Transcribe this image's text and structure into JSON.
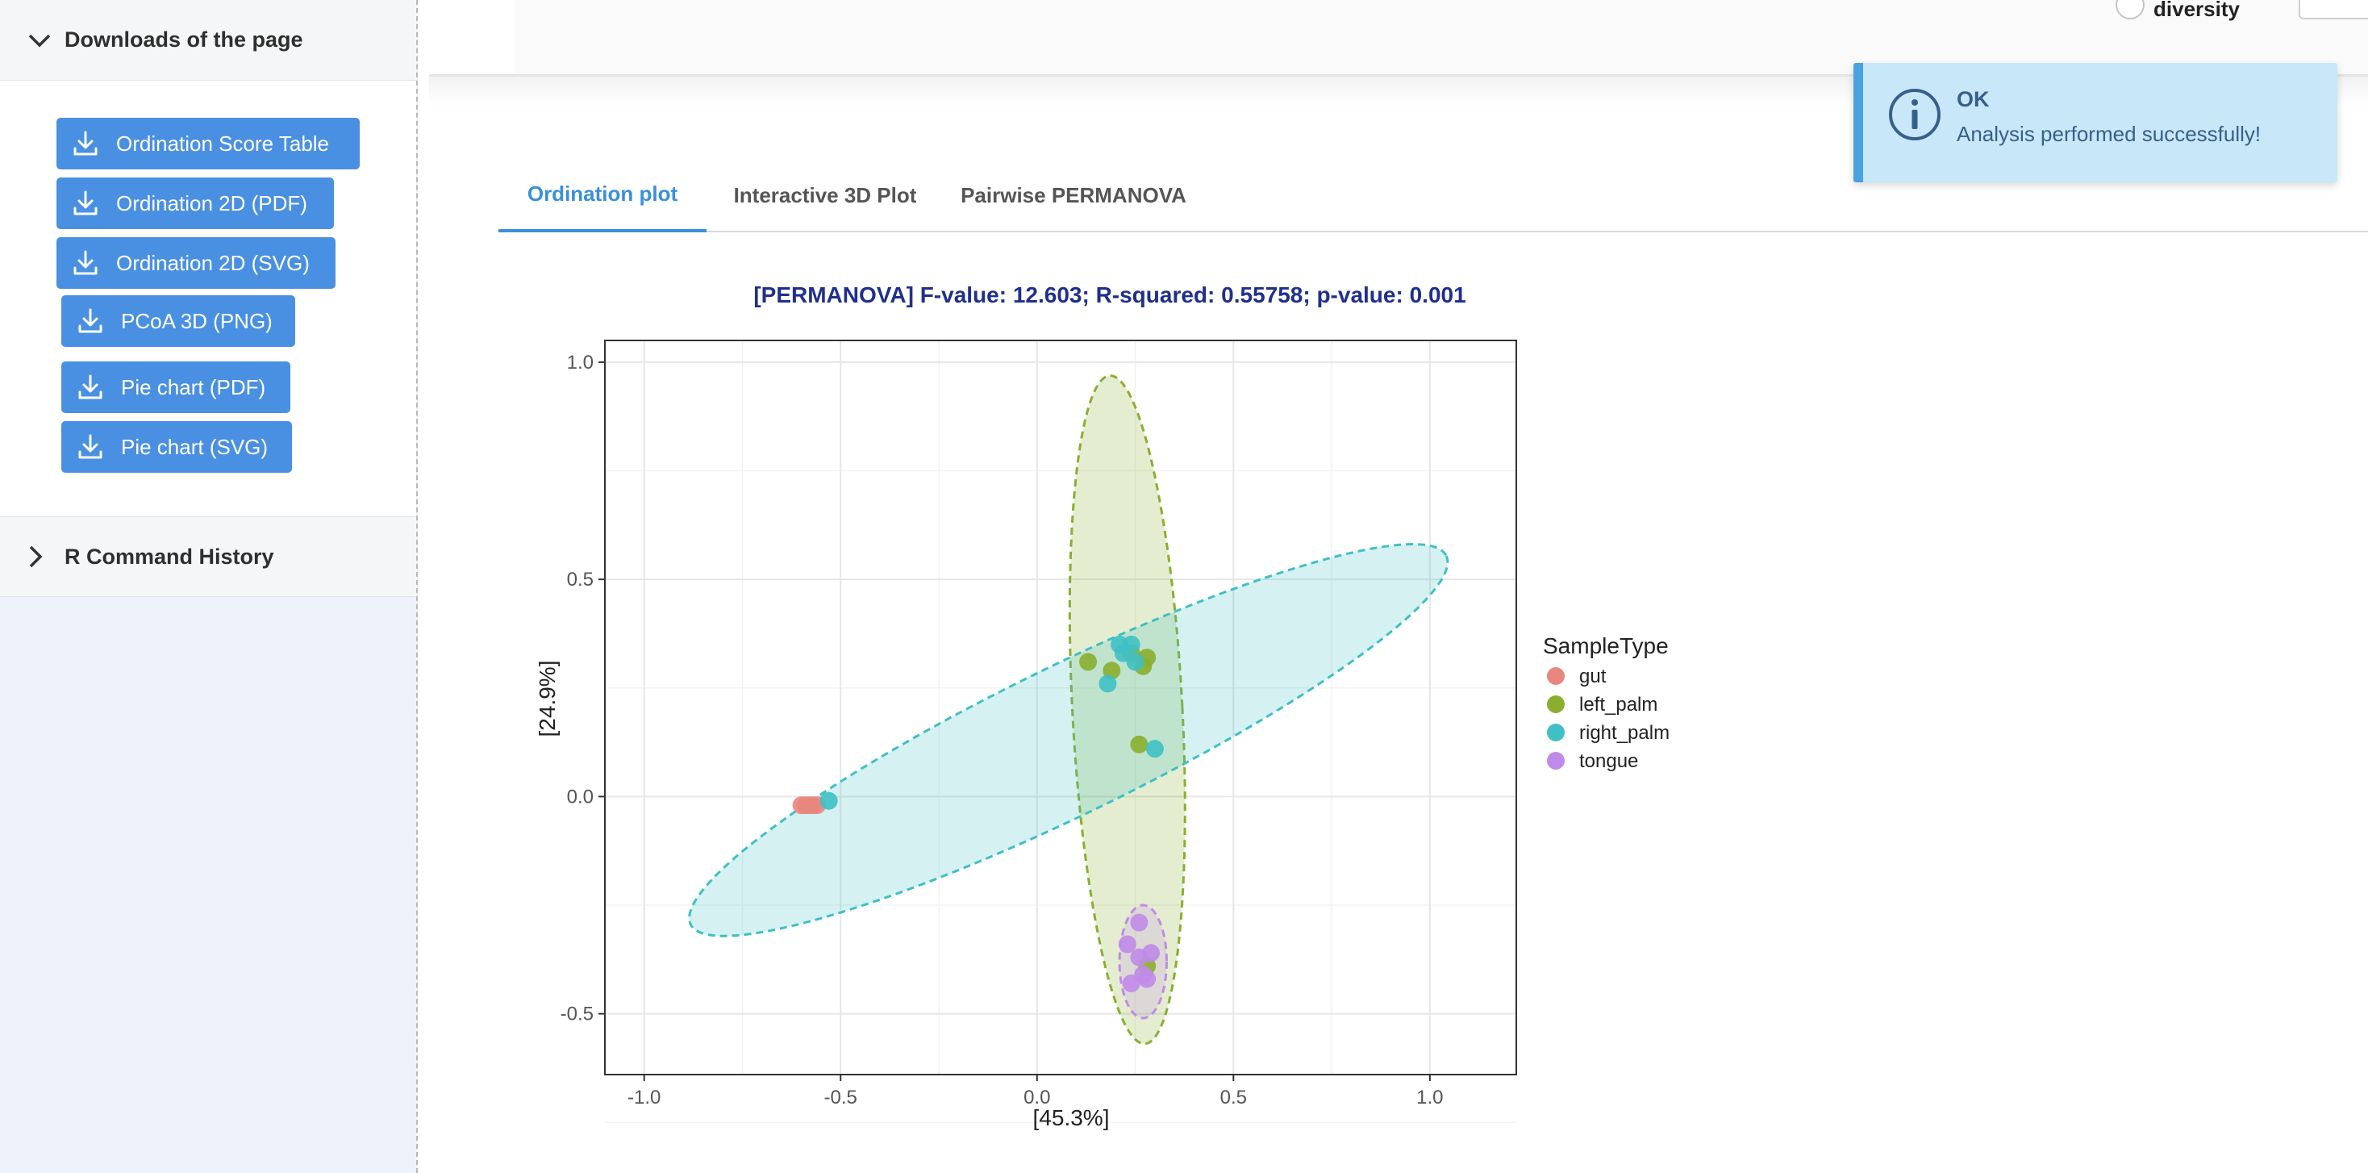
{
  "sidebar": {
    "downloads_title": "Downloads of the page",
    "buttons": [
      {
        "label": "Ordination Score Table"
      },
      {
        "label": "Ordination 2D (PDF)"
      },
      {
        "label": "Ordination 2D (SVG)"
      },
      {
        "label": "PCoA 3D (PNG)"
      },
      {
        "label": "Pie chart (PDF)"
      },
      {
        "label": "Pie chart (SVG)"
      }
    ],
    "history_title": "R Command History"
  },
  "top": {
    "diversity_label": "diversity"
  },
  "tabs": [
    {
      "label": "Ordination plot",
      "active": true
    },
    {
      "label": "Interactive 3D Plot",
      "active": false
    },
    {
      "label": "Pairwise PERMANOVA",
      "active": false
    }
  ],
  "toast": {
    "title": "OK",
    "message": "Analysis performed successfully!"
  },
  "colors": {
    "accent": "#4a90e2",
    "tab_active": "#3a8fdc",
    "title_navy": "#1f2f8f",
    "gut": "#e8877e",
    "left_palm": "#8aae2f",
    "right_palm": "#3fc0c4",
    "tongue": "#c08be8"
  },
  "chart_data": {
    "type": "scatter",
    "title": "[PERMANOVA] F-value: 12.603; R-squared: 0.55758; p-value: 0.001",
    "xlabel": "[45.3%]",
    "ylabel": "[24.9%]",
    "xlim": [
      -1.1,
      1.22
    ],
    "ylim": [
      -0.64,
      1.05
    ],
    "xticks": [
      "-1.0",
      "-0.5",
      "0.0",
      "0.5",
      "1.0"
    ],
    "yticks": [
      "-0.5",
      "0.0",
      "0.5",
      "1.0"
    ],
    "grid": true,
    "legend_title": "SampleType",
    "legend_position": "right",
    "series": [
      {
        "name": "gut",
        "points": [
          [
            -0.6,
            -0.02
          ],
          [
            -0.59,
            -0.02
          ],
          [
            -0.58,
            -0.02
          ],
          [
            -0.57,
            -0.02
          ],
          [
            -0.56,
            -0.02
          ]
        ],
        "ellipse": null
      },
      {
        "name": "left_palm",
        "points": [
          [
            0.13,
            0.31
          ],
          [
            0.19,
            0.29
          ],
          [
            0.27,
            0.3
          ],
          [
            0.28,
            0.32
          ],
          [
            0.24,
            0.33
          ],
          [
            0.26,
            0.12
          ],
          [
            0.28,
            -0.39
          ]
        ],
        "ellipse": {
          "cx": 0.23,
          "cy": 0.2,
          "rx": 0.14,
          "ry": 0.77,
          "angle": 3
        }
      },
      {
        "name": "right_palm",
        "points": [
          [
            -0.53,
            -0.01
          ],
          [
            0.18,
            0.26
          ],
          [
            0.21,
            0.35
          ],
          [
            0.24,
            0.35
          ],
          [
            0.22,
            0.33
          ],
          [
            0.25,
            0.31
          ],
          [
            0.3,
            0.11
          ]
        ],
        "ellipse": {
          "cx": 0.08,
          "cy": 0.13,
          "rx": 1.07,
          "ry": 0.17,
          "angle": 26
        }
      },
      {
        "name": "tongue",
        "points": [
          [
            0.26,
            -0.29
          ],
          [
            0.23,
            -0.34
          ],
          [
            0.26,
            -0.37
          ],
          [
            0.29,
            -0.36
          ],
          [
            0.27,
            -0.41
          ],
          [
            0.24,
            -0.43
          ],
          [
            0.28,
            -0.42
          ]
        ],
        "ellipse": {
          "cx": 0.27,
          "cy": -0.38,
          "rx": 0.06,
          "ry": 0.13,
          "angle": 0
        }
      }
    ]
  }
}
